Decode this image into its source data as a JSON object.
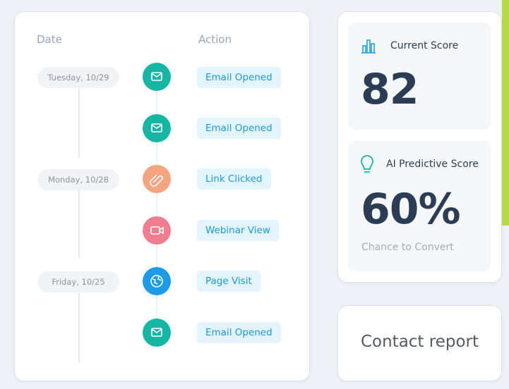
{
  "timeline": {
    "headers": {
      "date": "Date",
      "action": "Action"
    },
    "dates": [
      "Tuesday, 10/29",
      "Monday, 10/28",
      "Friday, 10/25"
    ],
    "actions": [
      "Email Opened",
      "Email Opened",
      "Link Clicked",
      "Webinar View",
      "Page Visit",
      "Email Opened"
    ]
  },
  "current_score": {
    "title": "Current Score",
    "value": "82"
  },
  "predictive_score": {
    "title": "AI Predictive Score",
    "value": "60%",
    "caption": "Chance to Convert"
  },
  "contact_report": {
    "title": "Contact report"
  }
}
